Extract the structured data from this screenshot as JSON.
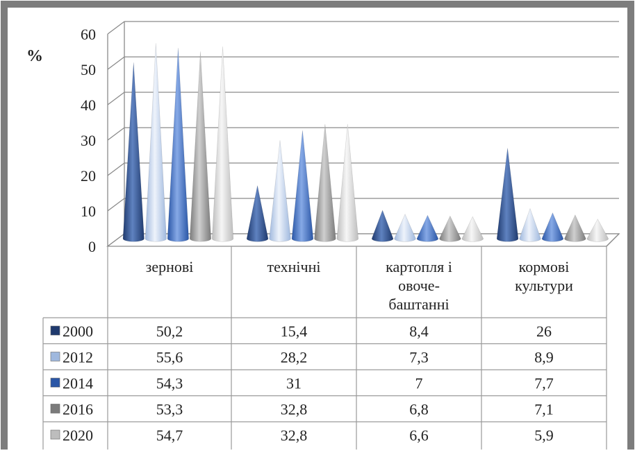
{
  "chart_data": {
    "type": "bar",
    "ylabel": "%",
    "ylim": [
      0,
      60
    ],
    "yticks": [
      "0",
      "10",
      "20",
      "30",
      "40",
      "50",
      "60"
    ],
    "grid": true,
    "categories": [
      [
        "зернові"
      ],
      [
        "технічні"
      ],
      [
        "картопля і",
        "овоче-",
        "баштанні"
      ],
      [
        "кормові",
        "культури"
      ]
    ],
    "series": [
      {
        "name": "2000",
        "values": [
          50.2,
          15.4,
          8.4,
          26
        ],
        "labels": [
          "50,2",
          "15,4",
          "8,4",
          "26"
        ],
        "color": "#1f3a6e",
        "hi": "#5f82c0"
      },
      {
        "name": "2012",
        "values": [
          55.6,
          28.2,
          7.3,
          8.9
        ],
        "labels": [
          "55,6",
          "28,2",
          "7,3",
          "8,9"
        ],
        "color": "#9fb8de",
        "hi": "#eef3fb"
      },
      {
        "name": "2014",
        "values": [
          54.3,
          31,
          7,
          7.7
        ],
        "labels": [
          "54,3",
          "31",
          "7",
          "7,7"
        ],
        "color": "#2a56a6",
        "hi": "#86a9e6"
      },
      {
        "name": "2016",
        "values": [
          53.3,
          32.8,
          6.8,
          7.1
        ],
        "labels": [
          "53,3",
          "32,8",
          "6,8",
          "7,1"
        ],
        "color": "#7b7b7b",
        "hi": "#cfcfcf"
      },
      {
        "name": "2020",
        "values": [
          54.7,
          32.8,
          6.6,
          5.9
        ],
        "labels": [
          "54,7",
          "32,8",
          "6,6",
          "5,9"
        ],
        "color": "#bdbdbd",
        "hi": "#f6f6f6"
      }
    ],
    "table_under_chart": true
  }
}
